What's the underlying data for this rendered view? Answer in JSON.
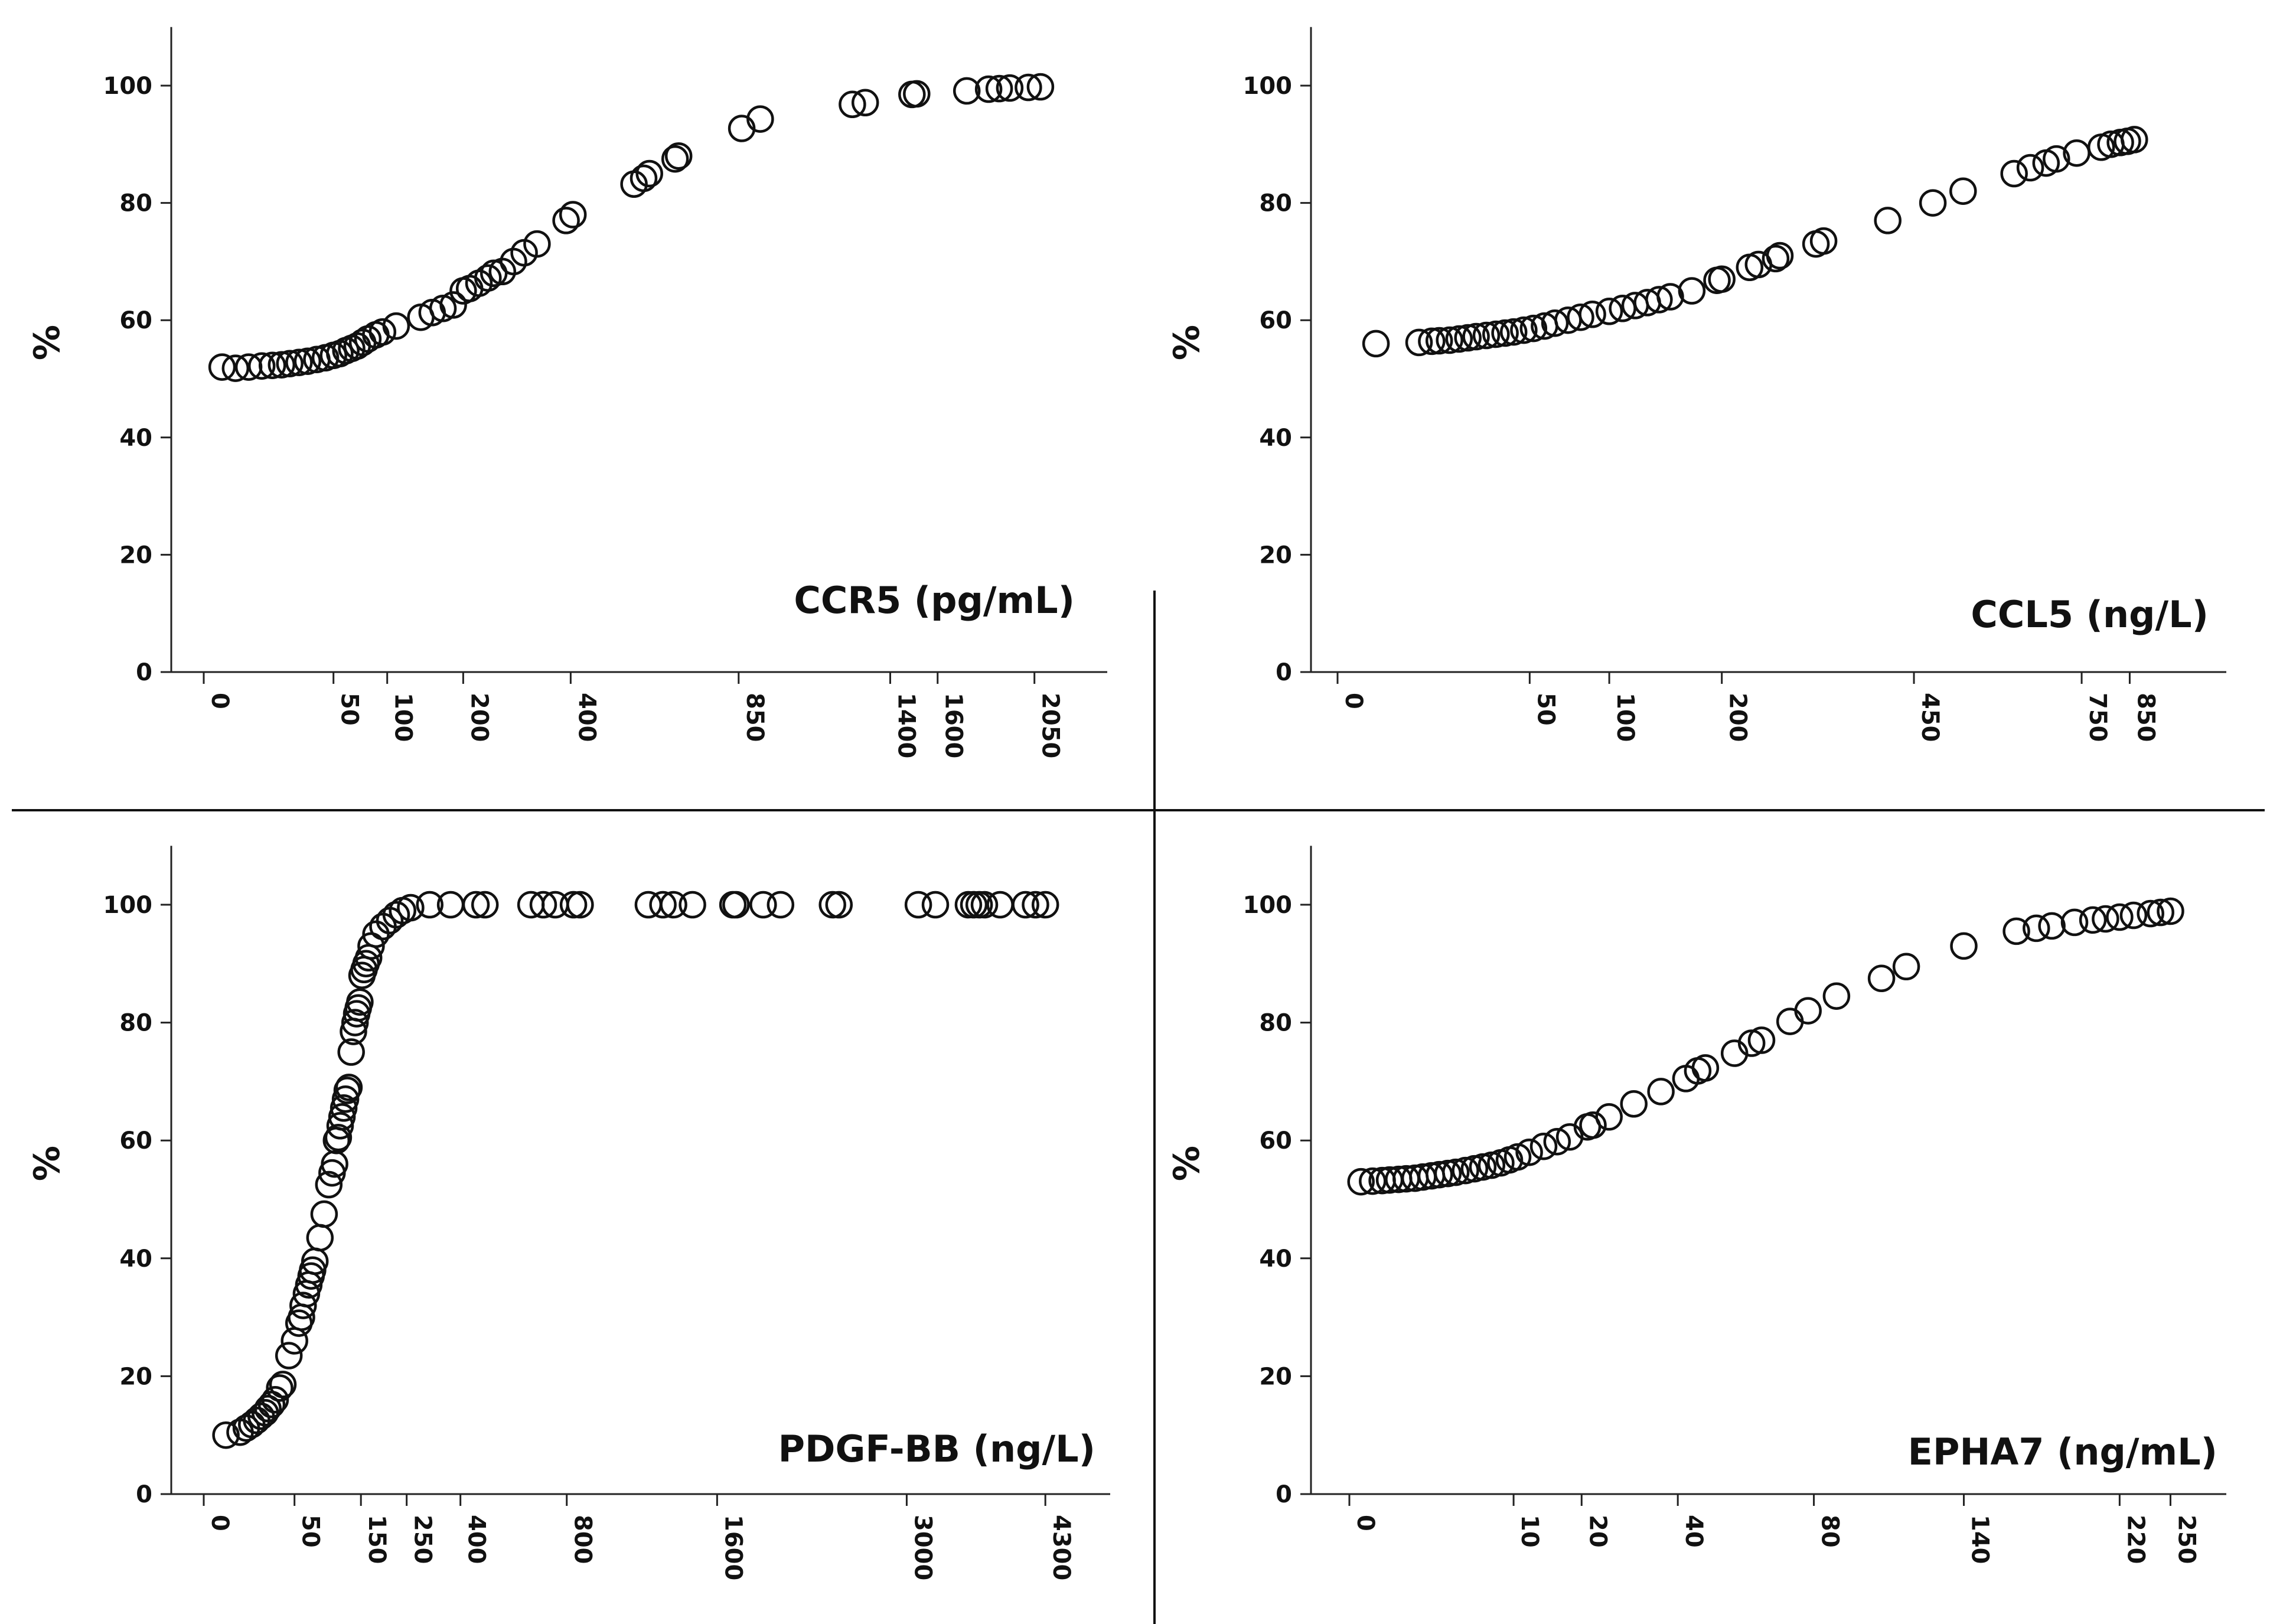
{
  "figure": {
    "background": "#ffffff",
    "ink": "#111111",
    "marker": "open-circle"
  },
  "chart_data": [
    {
      "type": "scatter",
      "title": "CCR5 (pg/mL)",
      "xlabel": "CCR5 (pg/mL)",
      "ylabel": "%",
      "xscale": "sqrt",
      "xlim": [
        0,
        2300
      ],
      "ylim": [
        0,
        110
      ],
      "xticks": [
        0,
        50,
        100,
        200,
        400,
        850,
        1400,
        1600,
        2050
      ],
      "yticks": [
        0,
        20,
        40,
        60,
        80,
        100
      ],
      "grid": false,
      "points": [
        [
          1,
          52
        ],
        [
          3,
          51.8
        ],
        [
          6,
          52
        ],
        [
          10,
          52.2
        ],
        [
          14,
          52.3
        ],
        [
          18,
          52.4
        ],
        [
          22,
          52.6
        ],
        [
          27,
          52.8
        ],
        [
          32,
          53
        ],
        [
          38,
          53.3
        ],
        [
          44,
          53.6
        ],
        [
          50,
          54
        ],
        [
          55,
          54.3
        ],
        [
          60,
          54.8
        ],
        [
          65,
          55.2
        ],
        [
          70,
          55.6
        ],
        [
          75,
          56.2
        ],
        [
          80,
          56.8
        ],
        [
          88,
          57.5
        ],
        [
          95,
          58
        ],
        [
          110,
          59
        ],
        [
          140,
          60.5
        ],
        [
          155,
          61.3
        ],
        [
          170,
          62
        ],
        [
          185,
          62.6
        ],
        [
          200,
          65
        ],
        [
          210,
          65.4
        ],
        [
          225,
          66.3
        ],
        [
          240,
          67.2
        ],
        [
          250,
          68
        ],
        [
          265,
          68.3
        ],
        [
          285,
          70
        ],
        [
          305,
          71.5
        ],
        [
          330,
          73
        ],
        [
          390,
          77
        ],
        [
          405,
          78
        ],
        [
          550,
          83.2
        ],
        [
          575,
          84.2
        ],
        [
          590,
          85
        ],
        [
          660,
          87.5
        ],
        [
          670,
          88
        ],
        [
          860,
          92.7
        ],
        [
          920,
          94.3
        ],
        [
          1250,
          96.8
        ],
        [
          1300,
          97.1
        ],
        [
          1490,
          98.5
        ],
        [
          1510,
          98.6
        ],
        [
          1730,
          99.1
        ],
        [
          1830,
          99.4
        ],
        [
          1880,
          99.5
        ],
        [
          1930,
          99.6
        ],
        [
          2020,
          99.7
        ],
        [
          2080,
          99.8
        ]
      ]
    },
    {
      "type": "scatter",
      "title": "CCL5 (ng/L)",
      "xlabel": "CCL5 (ng/L)",
      "ylabel": "%",
      "xscale": "sqrt",
      "xlim": [
        0,
        1000
      ],
      "ylim": [
        0,
        110
      ],
      "xticks": [
        0,
        50,
        100,
        200,
        450,
        750,
        850
      ],
      "yticks": [
        0,
        20,
        40,
        60,
        80,
        100
      ],
      "grid": false,
      "points": [
        [
          2,
          56
        ],
        [
          9,
          56.2
        ],
        [
          12,
          56.4
        ],
        [
          14,
          56.5
        ],
        [
          17,
          56.6
        ],
        [
          20,
          56.8
        ],
        [
          23,
          57
        ],
        [
          26,
          57.2
        ],
        [
          30,
          57.4
        ],
        [
          34,
          57.6
        ],
        [
          38,
          57.8
        ],
        [
          42,
          58
        ],
        [
          47,
          58.3
        ],
        [
          52,
          58.6
        ],
        [
          58,
          59
        ],
        [
          64,
          59.5
        ],
        [
          72,
          60
        ],
        [
          80,
          60.5
        ],
        [
          88,
          61
        ],
        [
          100,
          61.5
        ],
        [
          110,
          62
        ],
        [
          120,
          62.5
        ],
        [
          130,
          63
        ],
        [
          140,
          63.5
        ],
        [
          150,
          64
        ],
        [
          170,
          65
        ],
        [
          195,
          66.8
        ],
        [
          200,
          67
        ],
        [
          230,
          69
        ],
        [
          240,
          69.5
        ],
        [
          260,
          70.5
        ],
        [
          265,
          71
        ],
        [
          310,
          73
        ],
        [
          320,
          73.5
        ],
        [
          410,
          77
        ],
        [
          480,
          80
        ],
        [
          530,
          82
        ],
        [
          620,
          85
        ],
        [
          650,
          86
        ],
        [
          680,
          86.8
        ],
        [
          700,
          87.5
        ],
        [
          740,
          88.5
        ],
        [
          790,
          89.5
        ],
        [
          810,
          90
        ],
        [
          830,
          90.3
        ],
        [
          845,
          90.5
        ],
        [
          860,
          90.8
        ]
      ]
    },
    {
      "type": "scatter",
      "title": "PDGF-BB (ng/L)",
      "xlabel": "PDGF-BB (ng/L)",
      "ylabel": "%",
      "xscale": "sqrt",
      "xlim": [
        0,
        4700
      ],
      "ylim": [
        0,
        110
      ],
      "xticks": [
        0,
        50,
        150,
        250,
        400,
        800,
        1600,
        3000,
        4300
      ],
      "yticks": [
        0,
        20,
        40,
        60,
        80,
        100
      ],
      "grid": false,
      "points": [
        [
          3,
          10
        ],
        [
          8,
          10.5
        ],
        [
          11,
          11.2
        ],
        [
          14,
          11.8
        ],
        [
          17,
          12.5
        ],
        [
          20,
          13.2
        ],
        [
          23,
          13.8
        ],
        [
          25,
          14.5
        ],
        [
          28,
          15.2
        ],
        [
          31,
          16
        ],
        [
          35,
          18
        ],
        [
          38,
          18.6
        ],
        [
          44,
          23.5
        ],
        [
          50,
          26
        ],
        [
          55,
          29
        ],
        [
          58,
          30
        ],
        [
          60,
          32
        ],
        [
          64,
          34
        ],
        [
          67,
          35.5
        ],
        [
          70,
          37
        ],
        [
          72,
          38
        ],
        [
          75,
          39.5
        ],
        [
          82,
          43.5
        ],
        [
          88,
          47.5
        ],
        [
          95,
          52.5
        ],
        [
          100,
          54.5
        ],
        [
          104,
          56
        ],
        [
          107,
          60
        ],
        [
          110,
          60.5
        ],
        [
          113,
          62.5
        ],
        [
          116,
          64
        ],
        [
          119,
          65.5
        ],
        [
          122,
          67
        ],
        [
          125,
          68.5
        ],
        [
          128,
          69
        ],
        [
          132,
          75
        ],
        [
          136,
          78.5
        ],
        [
          139,
          80
        ],
        [
          142,
          81.5
        ],
        [
          145,
          82.5
        ],
        [
          148,
          83.5
        ],
        [
          152,
          88
        ],
        [
          156,
          89
        ],
        [
          160,
          90
        ],
        [
          165,
          91
        ],
        [
          170,
          93
        ],
        [
          180,
          95
        ],
        [
          195,
          96.3
        ],
        [
          210,
          97.3
        ],
        [
          225,
          98.3
        ],
        [
          240,
          99
        ],
        [
          260,
          99.5
        ],
        [
          310,
          100
        ],
        [
          370,
          100
        ],
        [
          450,
          100
        ],
        [
          480,
          100
        ],
        [
          650,
          100
        ],
        [
          700,
          100
        ],
        [
          750,
          100
        ],
        [
          830,
          100
        ],
        [
          860,
          100
        ],
        [
          1200,
          100
        ],
        [
          1280,
          100
        ],
        [
          1340,
          100
        ],
        [
          1450,
          100
        ],
        [
          1700,
          100
        ],
        [
          1720,
          100
        ],
        [
          1900,
          100
        ],
        [
          2020,
          100
        ],
        [
          2400,
          100
        ],
        [
          2450,
          100
        ],
        [
          3100,
          100
        ],
        [
          3250,
          100
        ],
        [
          3550,
          100
        ],
        [
          3600,
          100
        ],
        [
          3650,
          100
        ],
        [
          3700,
          100
        ],
        [
          3850,
          100
        ],
        [
          4100,
          100
        ],
        [
          4200,
          100
        ],
        [
          4300,
          100
        ]
      ]
    },
    {
      "type": "scatter",
      "title": "EPHA7 (ng/mL)",
      "xlabel": "EPHA7 (ng/mL)",
      "ylabel": "%",
      "xscale": "sqrt",
      "xlim": [
        0,
        270
      ],
      "ylim": [
        0,
        110
      ],
      "xticks": [
        0,
        10,
        20,
        40,
        80,
        140,
        220,
        250
      ],
      "yticks": [
        0,
        20,
        40,
        60,
        80,
        100
      ],
      "grid": false,
      "points": [
        [
          0.05,
          53
        ],
        [
          0.2,
          53.1
        ],
        [
          0.4,
          53.2
        ],
        [
          0.6,
          53.3
        ],
        [
          0.9,
          53.4
        ],
        [
          1.2,
          53.5
        ],
        [
          1.6,
          53.6
        ],
        [
          2,
          53.8
        ],
        [
          2.5,
          54
        ],
        [
          3,
          54.2
        ],
        [
          3.6,
          54.4
        ],
        [
          4.2,
          54.6
        ],
        [
          5,
          54.9
        ],
        [
          5.8,
          55.2
        ],
        [
          6.6,
          55.5
        ],
        [
          7.5,
          55.8
        ],
        [
          8.5,
          56.2
        ],
        [
          9.5,
          56.7
        ],
        [
          10.5,
          57.2
        ],
        [
          12,
          58
        ],
        [
          14,
          59
        ],
        [
          16,
          59.8
        ],
        [
          18,
          60.6
        ],
        [
          21,
          62.3
        ],
        [
          22,
          62.6
        ],
        [
          25,
          64
        ],
        [
          30,
          66.2
        ],
        [
          36,
          68.3
        ],
        [
          42,
          70.5
        ],
        [
          45,
          71.8
        ],
        [
          47,
          72.3
        ],
        [
          55,
          74.8
        ],
        [
          60,
          76.5
        ],
        [
          63,
          77
        ],
        [
          72,
          80.2
        ],
        [
          78,
          82
        ],
        [
          88,
          84.5
        ],
        [
          105,
          87.5
        ],
        [
          115,
          89.5
        ],
        [
          140,
          93
        ],
        [
          165,
          95.5
        ],
        [
          175,
          96
        ],
        [
          183,
          96.4
        ],
        [
          195,
          97
        ],
        [
          205,
          97.4
        ],
        [
          212,
          97.6
        ],
        [
          220,
          97.9
        ],
        [
          228,
          98.2
        ],
        [
          238,
          98.5
        ],
        [
          244,
          98.7
        ],
        [
          250,
          98.9
        ]
      ]
    }
  ]
}
